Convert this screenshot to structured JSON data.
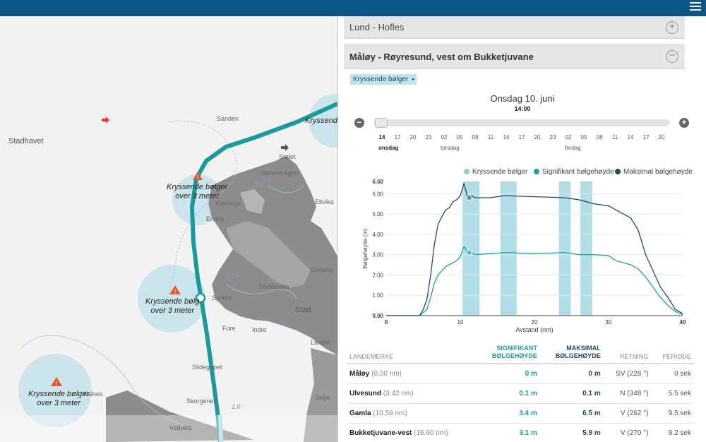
{
  "map": {
    "labels": [
      "Stadhavet",
      "Sanden",
      "Stølet",
      "Hannisvågen",
      "Kjerringa",
      "Ervika",
      "Eltvika",
      "Ghilane",
      "Hoddevika",
      "Stad",
      "Fure",
      "Indre",
      "Landet",
      "Sildegapet",
      "Skorgenes",
      "Selja",
      "Vedvika",
      "Kalnes",
      "Synlen"
    ],
    "contours": [
      "2.0",
      "2.0",
      "2.0",
      "2.0",
      "2.5"
    ],
    "warnings": [
      {
        "line1": "Kryssende bølger",
        "line2": "over 3 meter"
      },
      {
        "line1": "Kryssende bølg",
        "line2": "over 3 meter"
      },
      {
        "line1": "Kryssende bølger",
        "line2": "over 3 meter"
      },
      {
        "line1": "Kryssende",
        "line2": ""
      }
    ]
  },
  "panel": {
    "routes": [
      {
        "title": "Lund - Hofles",
        "toggle": "+"
      },
      {
        "title": "Måløy - Røyresund, vest om Bukketjuvane",
        "toggle": "−"
      }
    ],
    "layer_select": "Kryssende bølger",
    "date": "Onsdag 10. juni",
    "time": "14:00",
    "step_prev": "−",
    "step_next": "+",
    "hours": [
      "14",
      "17",
      "20",
      "23",
      "02",
      "05",
      "08",
      "11",
      "14",
      "17",
      "20",
      "23",
      "02",
      "05",
      "08",
      "11",
      "14",
      "17",
      "20"
    ],
    "days": [
      {
        "label": "onsdag",
        "at": 0
      },
      {
        "label": "torsdag",
        "at": 4
      },
      {
        "label": "fredag",
        "at": 12
      }
    ],
    "legend": [
      {
        "label": "Kryssende bølger",
        "color": "#8ed0da"
      },
      {
        "label": "Signifikant bølgehøyde",
        "color": "#1aa3a3"
      },
      {
        "label": "Maksimal bølgehøyde",
        "color": "#1e4a6a"
      }
    ]
  },
  "chart_data": {
    "type": "line",
    "xlabel": "Avstand (nm)",
    "ylabel": "Bølgehøyde (m)",
    "xlim": [
      0,
      40
    ],
    "ylim": [
      0,
      6.6
    ],
    "x_ticks": [
      "0",
      "10",
      "20",
      "30",
      "40"
    ],
    "y_ticks": [
      "0.00",
      "1.00",
      "2.00",
      "3.00",
      "4.00",
      "5.00",
      "6.00",
      "6.60"
    ],
    "crossing_bands": [
      [
        10.3,
        12.6
      ],
      [
        15.4,
        17.6
      ],
      [
        23.3,
        24.9
      ],
      [
        26.2,
        27.8
      ]
    ],
    "series": [
      {
        "name": "Signifikant bølgehøyde",
        "x": [
          0,
          4.5,
          5.5,
          6,
          6.5,
          7,
          8,
          9,
          9.5,
          10,
          10.5,
          11,
          11.5,
          12,
          14,
          16,
          20,
          24,
          26,
          28,
          30,
          31,
          32,
          33,
          34,
          35,
          36,
          37,
          38,
          39,
          40
        ],
        "values": [
          0,
          0,
          0.3,
          0.9,
          1.6,
          2.0,
          2.4,
          2.6,
          2.7,
          2.9,
          3.4,
          3.1,
          3.1,
          3.0,
          3.05,
          3.1,
          3.05,
          3.1,
          3.0,
          3.0,
          2.95,
          2.7,
          2.6,
          2.5,
          2.3,
          1.9,
          1.4,
          0.9,
          0.5,
          0.2,
          0.05
        ]
      },
      {
        "name": "Maksimal bølgehøyde",
        "x": [
          0,
          4.5,
          5,
          5.5,
          6,
          6.5,
          7,
          8,
          8.5,
          9,
          9.5,
          10,
          10.5,
          11,
          11.5,
          12,
          14,
          16,
          20,
          24,
          26,
          28,
          30,
          31,
          32,
          33,
          34,
          35,
          36,
          37,
          38,
          39,
          40
        ],
        "values": [
          0,
          0,
          0.3,
          0.8,
          2.0,
          3.5,
          4.5,
          5.2,
          5.3,
          5.6,
          5.7,
          5.9,
          6.5,
          5.8,
          5.9,
          5.8,
          5.8,
          5.9,
          5.85,
          5.8,
          5.7,
          5.5,
          5.4,
          5.2,
          5.0,
          4.8,
          4.2,
          3.0,
          2.2,
          1.4,
          0.9,
          0.3,
          0.1
        ]
      }
    ],
    "markers": [
      {
        "x": 11.2,
        "y": 5.8
      },
      {
        "x": 11.2,
        "y": 3.1
      }
    ]
  },
  "table": {
    "headers": {
      "landmark": "LANDEMERKE",
      "sig_line1": "SIGNIFIKANT",
      "sig_line2": "BØLGEHØYDE",
      "max_line1": "MAKSIMAL",
      "max_line2": "BØLGEHØYDE",
      "direction": "RETNING",
      "period": "PERIODE"
    },
    "rows": [
      {
        "name": "Måløy",
        "dist": "(0.00 nm)",
        "sig": "0 m",
        "max": "0 m",
        "dir": "SV (228 °)",
        "period": "0 sek"
      },
      {
        "name": "Ulvesund",
        "dist": "(3.42 nm)",
        "sig": "0.1 m",
        "max": "0.1 m",
        "dir": "N (348 °)",
        "period": "5.5 sek"
      },
      {
        "name": "Gamla",
        "dist": "(10.59 nm)",
        "sig": "3.4 m",
        "max": "6.5 m",
        "dir": "V (262 °)",
        "period": "9.5 sek"
      },
      {
        "name": "Bukketjuvane-vest",
        "dist": "(16.60 nm)",
        "sig": "3.1 m",
        "max": "5.9 m",
        "dir": "V (270 °)",
        "period": "9.2 sek"
      }
    ]
  },
  "colors": {
    "topbar": "#0c5587",
    "route_line": "#1a9a9a",
    "warning_zone": "#bfe0ea",
    "warning_icon": "#e05a2b",
    "land": "#8c8c8c"
  }
}
